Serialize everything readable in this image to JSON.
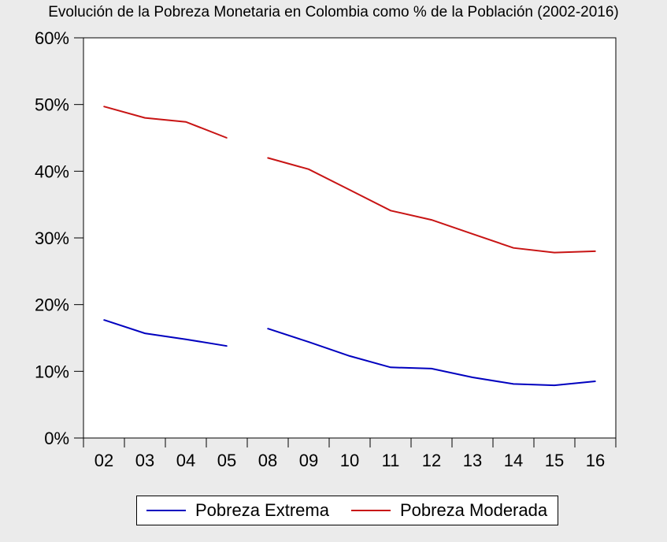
{
  "chart_data": {
    "type": "line",
    "title": "Evolución de la Pobreza Monetaria en Colombia como % de la Población (2002-2016)",
    "categories": [
      "02",
      "03",
      "04",
      "05",
      "08",
      "09",
      "10",
      "11",
      "12",
      "13",
      "14",
      "15",
      "16"
    ],
    "ylim": [
      0,
      60
    ],
    "yticks": [
      0,
      10,
      20,
      30,
      40,
      50,
      60
    ],
    "ytick_labels": [
      "0%",
      "10%",
      "20%",
      "30%",
      "40%",
      "50%",
      "60%"
    ],
    "grid": false,
    "legend_position": "bottom",
    "series": [
      {
        "name": "Pobreza Extrema",
        "color": "#0000bf",
        "values": [
          17.7,
          15.7,
          14.8,
          13.8,
          16.4,
          14.4,
          12.3,
          10.6,
          10.4,
          9.1,
          8.1,
          7.9,
          8.5
        ]
      },
      {
        "name": "Pobreza Moderada",
        "color": "#c81414",
        "values": [
          49.7,
          48.0,
          47.4,
          45.0,
          42.0,
          40.3,
          37.2,
          34.1,
          32.7,
          30.6,
          28.5,
          27.8,
          28.0
        ]
      }
    ],
    "breaks_after_index": [
      3
    ]
  }
}
